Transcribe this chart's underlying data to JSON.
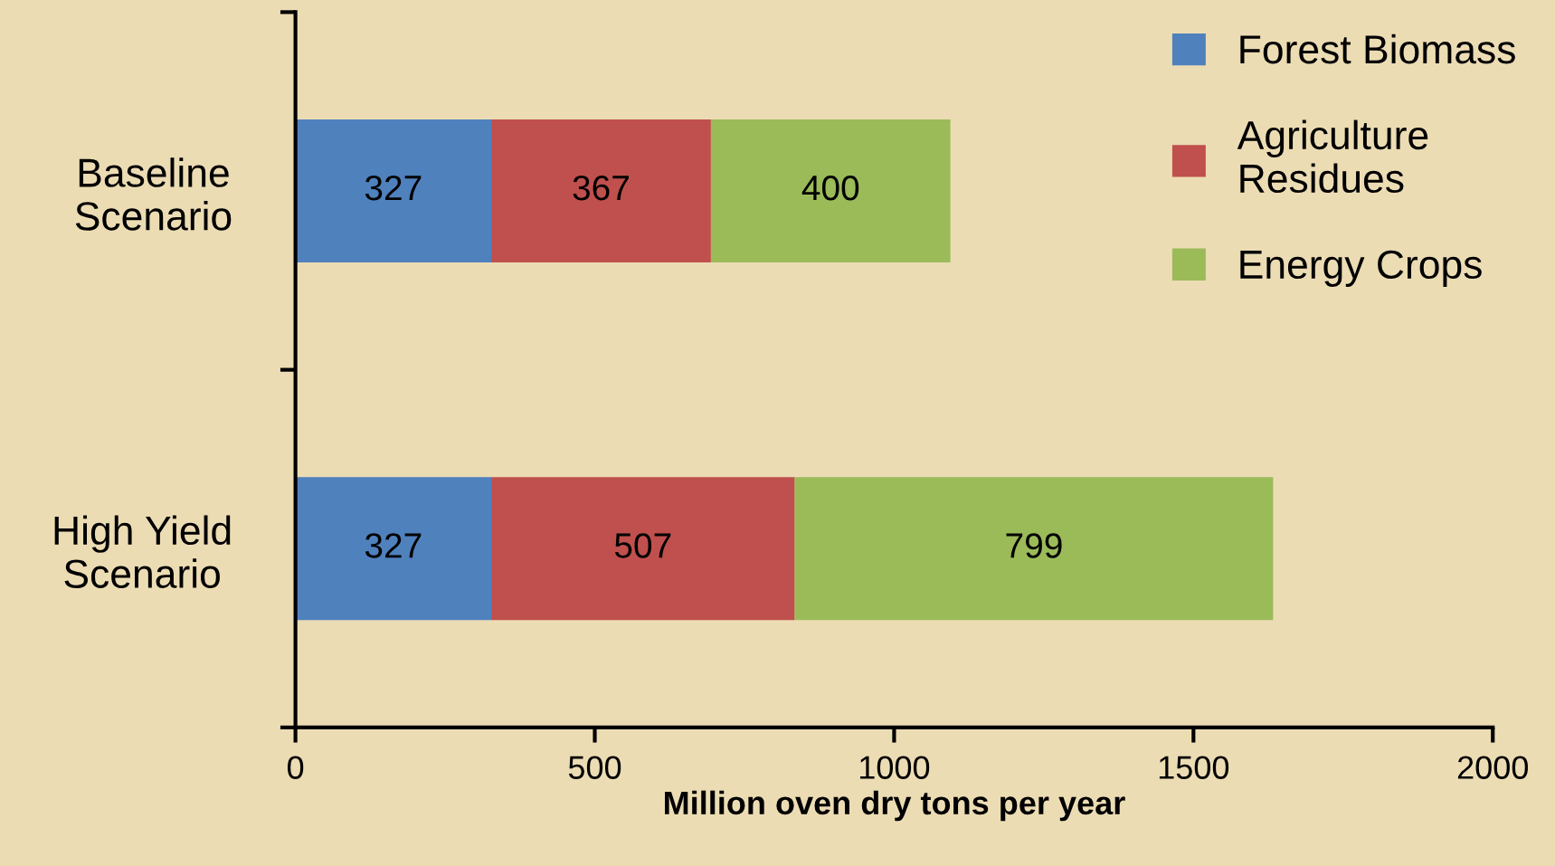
{
  "chart_data": {
    "type": "bar",
    "orientation": "horizontal",
    "stacked": true,
    "categories": [
      "Baseline\nScenario",
      "High Yield\nScenario"
    ],
    "series": [
      {
        "name": "Forest Biomass",
        "color": "#4f81bd",
        "values": [
          327,
          327
        ]
      },
      {
        "name": "Agriculture\nResidues",
        "color": "#c0504d",
        "values": [
          367,
          507
        ]
      },
      {
        "name": "Energy Crops",
        "color": "#9bbb59",
        "values": [
          400,
          799
        ]
      }
    ],
    "xlabel": "Million oven dry tons per year",
    "xlim": [
      0,
      2000
    ],
    "xticks": [
      0,
      500,
      1000,
      1500,
      2000
    ],
    "data_labels": true,
    "grid": false,
    "legend": "top right"
  }
}
